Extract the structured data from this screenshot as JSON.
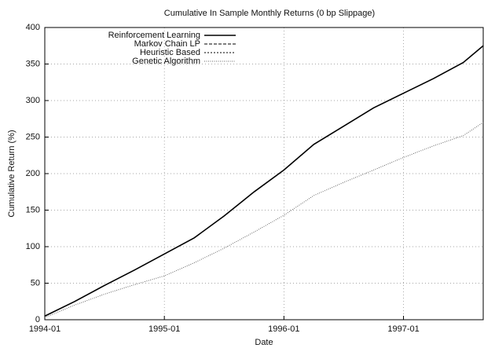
{
  "chart_data": {
    "type": "line",
    "title": "Cumulative In Sample Monthly Returns (0 bp Slippage)",
    "x_label": "Date",
    "y_label": "Cumulative Return (%)",
    "x": [
      "1994-01",
      "1994-04",
      "1994-07",
      "1994-10",
      "1995-01",
      "1995-04",
      "1995-07",
      "1995-10",
      "1996-01",
      "1996-04",
      "1996-07",
      "1996-10",
      "1997-01",
      "1997-04",
      "1997-07",
      "1997-09"
    ],
    "series": [
      {
        "name": "Reinforcement Learning",
        "color": "#000000",
        "style": "solid",
        "values": [
          5,
          25,
          47,
          68,
          90,
          112,
          142,
          175,
          205,
          240,
          265,
          290,
          310,
          330,
          352,
          375
        ]
      },
      {
        "name": "Markov Chain LP",
        "color": "#000000",
        "style": "dashed",
        "values": [
          5,
          25,
          47,
          68,
          90,
          112,
          142,
          175,
          205,
          240,
          265,
          290,
          310,
          330,
          352,
          375
        ]
      },
      {
        "name": "Heuristic Based",
        "color": "#000000",
        "style": "dotted",
        "values": [
          5,
          25,
          47,
          68,
          90,
          112,
          142,
          175,
          205,
          240,
          265,
          290,
          310,
          330,
          352,
          375
        ]
      },
      {
        "name": "Genetic Algorithm",
        "color": "#666666",
        "style": "fine",
        "values": [
          3,
          20,
          35,
          48,
          60,
          78,
          98,
          120,
          143,
          170,
          188,
          205,
          222,
          238,
          252,
          270
        ]
      }
    ],
    "xlim": [
      "1994-01",
      "1997-09"
    ],
    "xticks": [
      "1994-01",
      "1995-01",
      "1996-01",
      "1997-01"
    ],
    "ylim": [
      0,
      400
    ],
    "yticks": [
      0,
      50,
      100,
      150,
      200,
      250,
      300,
      350,
      400
    ],
    "grid": true,
    "legend": "top-left"
  }
}
